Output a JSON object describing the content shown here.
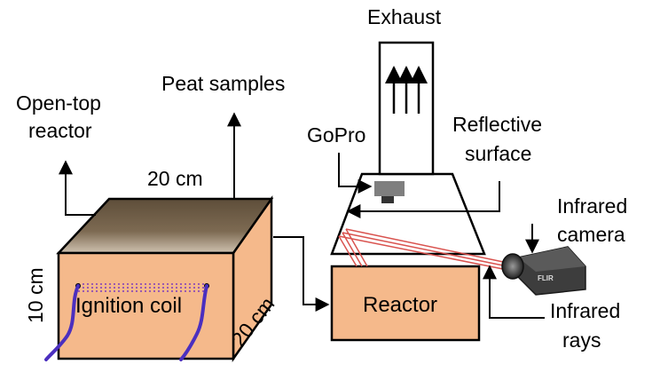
{
  "labels": {
    "exhaust": "Exhaust",
    "peat_samples": "Peat samples",
    "open_top_line1": "Open-top",
    "open_top_line2": "reactor",
    "gopro": "GoPro",
    "reflective_line1": "Reflective",
    "reflective_line2": "surface",
    "dim_top": "20 cm",
    "dim_side": "20 cm",
    "dim_height": "10 cm",
    "ignition_coil": "Ignition coil",
    "reactor": "Reactor",
    "infrared_camera_line1": "Infrared",
    "infrared_camera_line2": "camera",
    "infrared_rays_line1": "Infrared",
    "infrared_rays_line2": "rays",
    "camera_brand": "FLIR"
  },
  "colors": {
    "box_fill": "#f5b98b",
    "peat_top": "#6b5a44",
    "peat_bottom": "#c7b8a3",
    "coil_wire": "#4b2fbf",
    "ignition_dots": "#9a5ab0",
    "ir_rays": "#d9534f",
    "camera_body": "#404040"
  }
}
